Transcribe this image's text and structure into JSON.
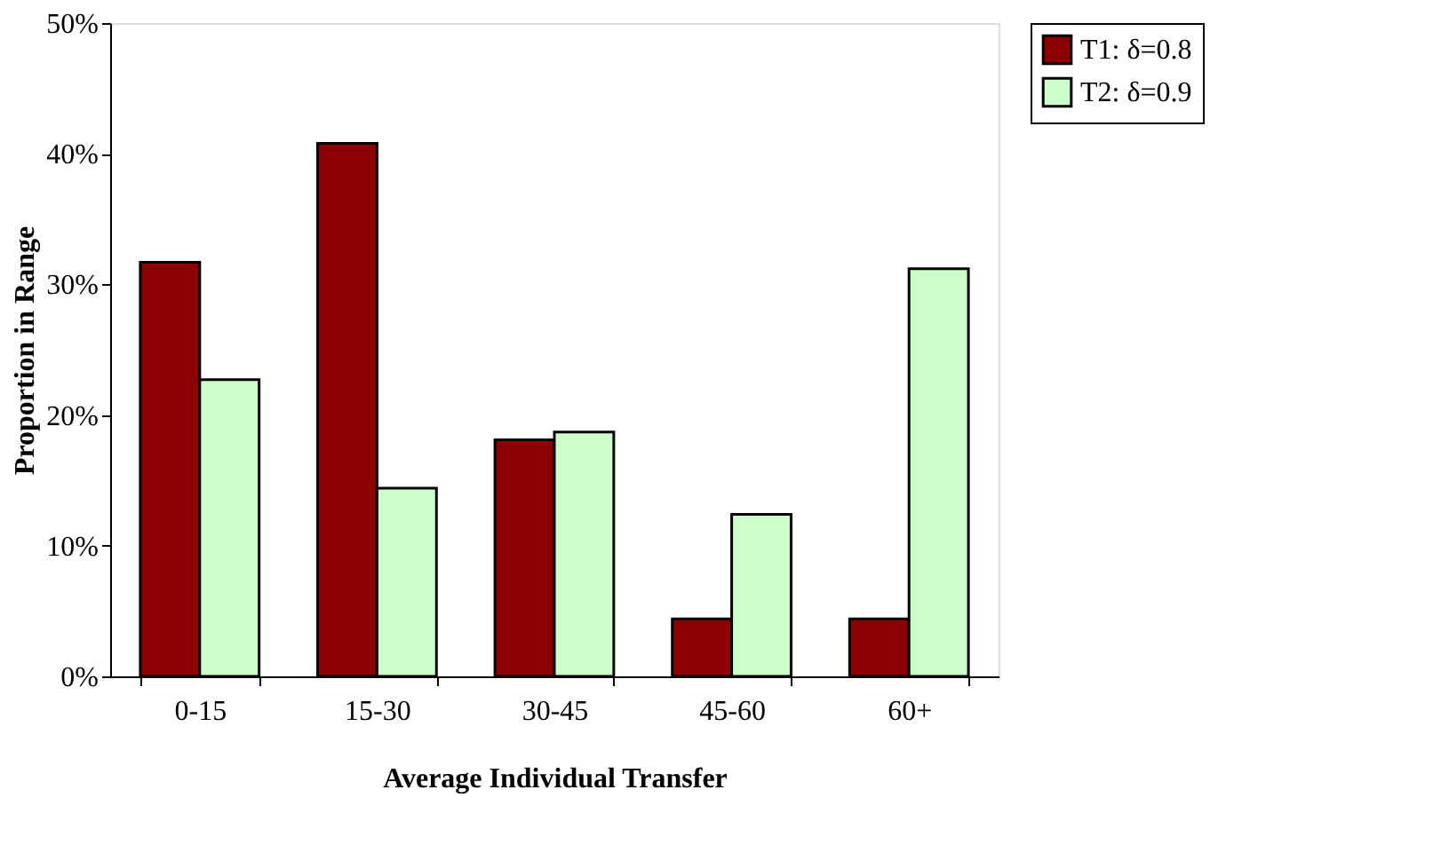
{
  "chart_data": {
    "type": "bar",
    "xlabel": "Average Individual Transfer",
    "ylabel": "Proportion in Range",
    "categories": [
      "0-15",
      "15-30",
      "30-45",
      "45-60",
      "60+"
    ],
    "series": [
      {
        "name": "T1: δ=0.8",
        "color": "#8b0000",
        "values": [
          31.7,
          40.8,
          18.1,
          4.4,
          4.4
        ]
      },
      {
        "name": "T2: δ=0.9",
        "color": "#ccffcc",
        "values": [
          22.7,
          14.4,
          18.7,
          12.4,
          31.2
        ]
      }
    ],
    "ylim": [
      0,
      50
    ],
    "yticks": [
      {
        "value": 0,
        "label": "0%"
      },
      {
        "value": 10,
        "label": "10%"
      },
      {
        "value": 20,
        "label": "20%"
      },
      {
        "value": 30,
        "label": "30%"
      },
      {
        "value": 40,
        "label": "40%"
      },
      {
        "value": 50,
        "label": "50%"
      }
    ],
    "grid": false,
    "legend": "right"
  }
}
